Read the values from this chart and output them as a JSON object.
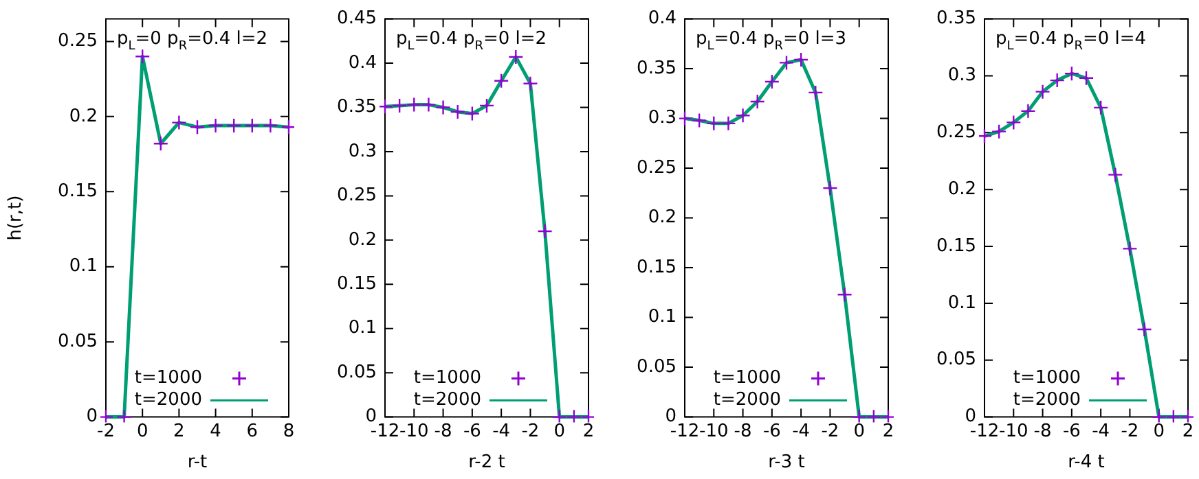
{
  "chart_data": [
    {
      "type": "line",
      "ylabel": "h(r,t)",
      "xlabel": "r-t",
      "annotations": [
        "p$_{L}$=0 p$_{R}$=0.4 l=2"
      ],
      "legend": "bottom left",
      "xlim": [
        -2,
        8
      ],
      "xticks": [
        -2,
        0,
        2,
        4,
        6,
        8
      ],
      "ylim": [
        0,
        0.265
      ],
      "yticks": [
        0,
        0.05,
        0.1,
        0.15,
        0.2,
        0.25
      ],
      "x": [
        -2,
        -1,
        0,
        1,
        2,
        3,
        4,
        5,
        6,
        7,
        8
      ],
      "series": [
        {
          "name": "t=1000",
          "type": "scatter",
          "marker": "cross",
          "color": "#9400d3",
          "values": [
            0,
            0,
            0.24,
            0.182,
            0.196,
            0.193,
            0.194,
            0.194,
            0.194,
            0.194,
            0.193
          ]
        },
        {
          "name": "t=2000",
          "type": "line",
          "marker": "none",
          "color": "#009e73",
          "values": [
            0,
            0,
            0.24,
            0.182,
            0.196,
            0.193,
            0.194,
            0.194,
            0.194,
            0.194,
            0.193
          ]
        }
      ]
    },
    {
      "type": "line",
      "xlabel": "r-2 t",
      "annotations": [
        "p$_{L}$=0.4 p$_{R}$=0 l=2"
      ],
      "legend": "bottom left",
      "xlim": [
        -12,
        2
      ],
      "xticks": [
        -12,
        -10,
        -8,
        -6,
        -4,
        -2,
        0,
        2
      ],
      "ylim": [
        0,
        0.45
      ],
      "yticks": [
        0,
        0.05,
        0.1,
        0.15,
        0.2,
        0.25,
        0.3,
        0.35,
        0.4,
        0.45
      ],
      "x": [
        -12,
        -11,
        -10,
        -9,
        -8,
        -7,
        -6,
        -5,
        -4,
        -3,
        -2,
        -1,
        0,
        1,
        2
      ],
      "series": [
        {
          "name": "t=1000",
          "type": "scatter",
          "marker": "cross",
          "color": "#9400d3",
          "values": [
            0.351,
            0.352,
            0.353,
            0.353,
            0.35,
            0.345,
            0.343,
            0.352,
            0.38,
            0.407,
            0.377,
            0.21,
            0,
            0,
            0
          ]
        },
        {
          "name": "t=2000",
          "type": "line",
          "marker": "none",
          "color": "#009e73",
          "values": [
            0.351,
            0.352,
            0.353,
            0.353,
            0.35,
            0.345,
            0.343,
            0.352,
            0.38,
            0.407,
            0.377,
            0.21,
            0,
            0,
            0
          ]
        }
      ]
    },
    {
      "type": "line",
      "xlabel": "r-3 t",
      "annotations": [
        "p$_{L}$=0.4 p$_{R}$=0 l=3"
      ],
      "legend": "bottom left",
      "xlim": [
        -12,
        2
      ],
      "xticks": [
        -12,
        -10,
        -8,
        -6,
        -4,
        -2,
        0,
        2
      ],
      "ylim": [
        0,
        0.4
      ],
      "yticks": [
        0,
        0.05,
        0.1,
        0.15,
        0.2,
        0.25,
        0.3,
        0.35,
        0.4
      ],
      "x": [
        -12,
        -11,
        -10,
        -9,
        -8,
        -7,
        -6,
        -5,
        -4,
        -3,
        -2,
        -1,
        0,
        1,
        2
      ],
      "series": [
        {
          "name": "t=1000",
          "type": "scatter",
          "marker": "cross",
          "color": "#9400d3",
          "values": [
            0.3,
            0.298,
            0.295,
            0.295,
            0.303,
            0.317,
            0.337,
            0.356,
            0.359,
            0.326,
            0.23,
            0.123,
            0,
            0,
            0
          ]
        },
        {
          "name": "t=2000",
          "type": "line",
          "marker": "none",
          "color": "#009e73",
          "values": [
            0.3,
            0.298,
            0.295,
            0.295,
            0.303,
            0.317,
            0.337,
            0.356,
            0.359,
            0.326,
            0.23,
            0.123,
            0,
            0,
            0
          ]
        }
      ]
    },
    {
      "type": "line",
      "xlabel": "r-4 t",
      "annotations": [
        "p$_{L}$=0.4 p$_{R}$=0 l=4"
      ],
      "legend": "bottom left",
      "xlim": [
        -12,
        2
      ],
      "xticks": [
        -12,
        -10,
        -8,
        -6,
        -4,
        -2,
        0,
        2
      ],
      "ylim": [
        0,
        0.35
      ],
      "yticks": [
        0,
        0.05,
        0.1,
        0.15,
        0.2,
        0.25,
        0.3,
        0.35
      ],
      "x": [
        -12,
        -11,
        -10,
        -9,
        -8,
        -7,
        -6,
        -5,
        -4,
        -3,
        -2,
        -1,
        0,
        1,
        2
      ],
      "series": [
        {
          "name": "t=1000",
          "type": "scatter",
          "marker": "cross",
          "color": "#9400d3",
          "values": [
            0.247,
            0.251,
            0.259,
            0.269,
            0.286,
            0.296,
            0.302,
            0.298,
            0.272,
            0.213,
            0.148,
            0.077,
            0,
            0,
            0
          ]
        },
        {
          "name": "t=2000",
          "type": "line",
          "marker": "none",
          "color": "#009e73",
          "values": [
            0.247,
            0.251,
            0.259,
            0.269,
            0.286,
            0.296,
            0.302,
            0.298,
            0.272,
            0.213,
            0.148,
            0.077,
            0,
            0,
            0
          ]
        }
      ]
    }
  ]
}
